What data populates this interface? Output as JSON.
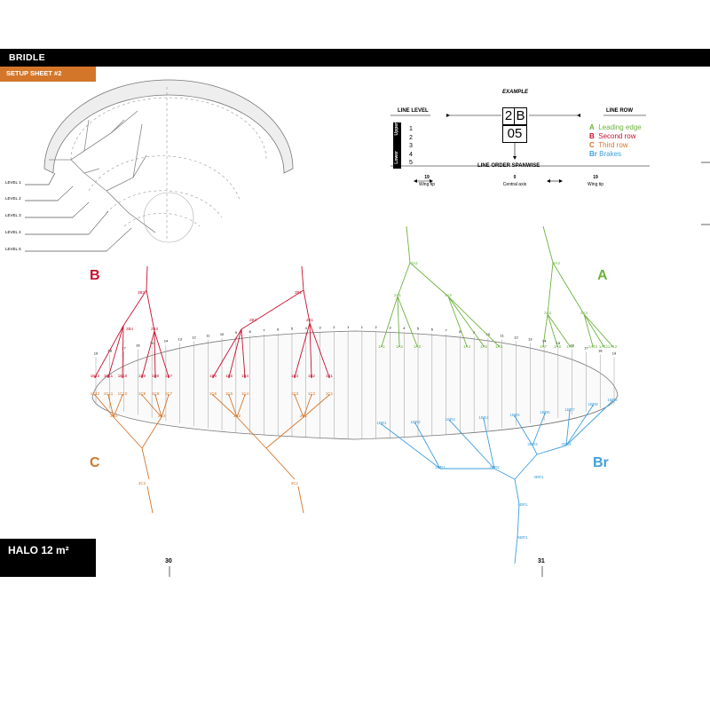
{
  "header": {
    "title": "BRIDLE",
    "subtitle": "SETUP SHEET #2"
  },
  "model": {
    "name": "HALO 12 m²"
  },
  "pages": {
    "left": "30",
    "right": "31"
  },
  "levels": [
    "LEVEL 1",
    "LEVEL 2",
    "LEVEL 3",
    "LEVEL 4",
    "LEVEL 5"
  ],
  "example": {
    "title": "EXAMPLE",
    "box_top_left": "2",
    "box_top_right": "B",
    "box_bottom": "05",
    "line_level_title": "LINE LEVEL",
    "lower": "Lower",
    "upper": "Upper",
    "level_numbers": [
      "1",
      "2",
      "3",
      "4",
      "5"
    ],
    "line_row_title": "LINE ROW",
    "rows": [
      {
        "letter": "A",
        "label": "Leading edge",
        "color": "#6db33f"
      },
      {
        "letter": "B",
        "label": "Second row",
        "color": "#c8102e"
      },
      {
        "letter": "C",
        "label": "Third row",
        "color": "#d4762a"
      },
      {
        "letter": "Br",
        "label": "Brakes",
        "color": "#3fa0db"
      }
    ],
    "spanwise_title": "LINE ORDER SPANWISE",
    "spanwise": [
      {
        "num": "19",
        "label": "Wing tip"
      },
      {
        "num": "0",
        "label": "Central axis"
      },
      {
        "num": "19",
        "label": "Wing tip"
      }
    ]
  },
  "colors": {
    "A": "#6db33f",
    "B": "#c8102e",
    "C": "#d4762a",
    "Br": "#3fa0db",
    "orange_bar": "#d4762a"
  },
  "group_letters": {
    "B": "B",
    "A": "A",
    "C": "C",
    "Br": "Br"
  },
  "rib_numbers": [
    "19",
    "18",
    "17",
    "16",
    "15",
    "14",
    "13",
    "12",
    "11",
    "10",
    "9",
    "8",
    "7",
    "6",
    "5",
    "4",
    "3",
    "2",
    "1",
    "1",
    "2",
    "3",
    "4",
    "5",
    "6",
    "7",
    "8",
    "9",
    "10",
    "11",
    "12",
    "13",
    "14",
    "15",
    "16",
    "17",
    "18",
    "19"
  ],
  "lines": {
    "B": {
      "level3": [
        "3B2",
        "3B1"
      ],
      "level2": [
        "2B4",
        "2B3",
        "2B2",
        "2B1"
      ],
      "level1": [
        "1B12",
        "1B11",
        "1B10",
        "1B9",
        "1B8",
        "1B7",
        "1B6",
        "1B5",
        "1B4",
        "1B3",
        "1B2",
        "1B1"
      ]
    },
    "C": {
      "level3": [
        "3C2",
        "3C1"
      ],
      "level2": [
        "2C4",
        "2C3",
        "2C2",
        "2C1"
      ],
      "level1": [
        "1C12",
        "1C11",
        "1C10",
        "1C9",
        "1C8",
        "1C7",
        "1C6",
        "1C5",
        "1C4",
        "1C3",
        "1C2",
        "1C1"
      ]
    },
    "A": {
      "level3": [
        "3A1",
        "3A2"
      ],
      "level2": [
        "2A1",
        "2A2",
        "2A3",
        "2A4"
      ],
      "level1": [
        "1A1",
        "1A2",
        "1A3",
        "1A4",
        "1A5",
        "1A6",
        "1A7",
        "1A8",
        "1A9",
        "1A10",
        "1A11",
        "1A12"
      ]
    },
    "Br": {
      "level5": [
        "5BR1"
      ],
      "level4": [
        "4BR1"
      ],
      "level3": [
        "3BR1"
      ],
      "level2": [
        "2BR1",
        "2BR2",
        "2BR3",
        "2BR4"
      ],
      "level1": [
        "1BR1",
        "1BR2",
        "1BR3",
        "1BR4",
        "1BR5",
        "1BR6",
        "1BR7",
        "1BR8",
        "1BR9"
      ]
    }
  }
}
